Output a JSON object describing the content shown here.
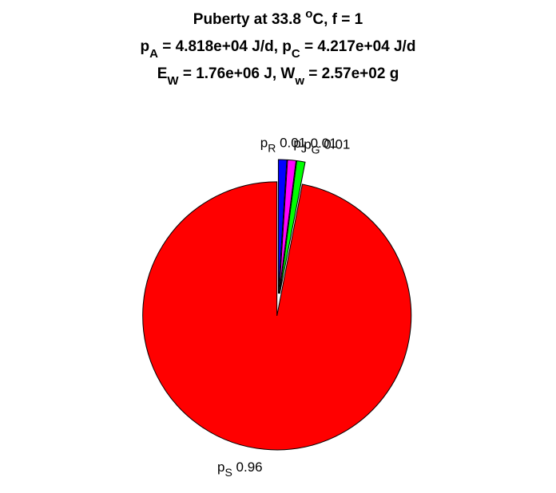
{
  "chart_data": {
    "type": "pie",
    "title": [
      [
        {
          "text": "Puberty at 33.8 "
        },
        {
          "text": "o",
          "shift": "sup"
        },
        {
          "text": "C, f = 1"
        }
      ],
      [
        {
          "text": "p"
        },
        {
          "text": "A",
          "shift": "sub"
        },
        {
          "text": " = 4.818e+04 J/d,  p"
        },
        {
          "text": "C",
          "shift": "sub"
        },
        {
          "text": " = 4.217e+04 J/d"
        }
      ],
      [
        {
          "text": "E"
        },
        {
          "text": "W",
          "shift": "sub"
        },
        {
          "text": " = 1.76e+06 J, W"
        },
        {
          "text": "w",
          "shift": "sub"
        },
        {
          "text": " = 2.57e+02 g"
        }
      ]
    ],
    "slices": [
      {
        "symbol": "p",
        "sub": "R",
        "value": 0.01,
        "color": "#0000ff"
      },
      {
        "symbol": "p",
        "sub": "J",
        "value": 0.01,
        "color": "#ff00ff"
      },
      {
        "symbol": "p",
        "sub": "G",
        "value": 0.01,
        "color": "#00ff00"
      },
      {
        "symbol": "p",
        "sub": "S",
        "value": 0.96,
        "color": "#ff0000"
      }
    ],
    "explode": true
  }
}
